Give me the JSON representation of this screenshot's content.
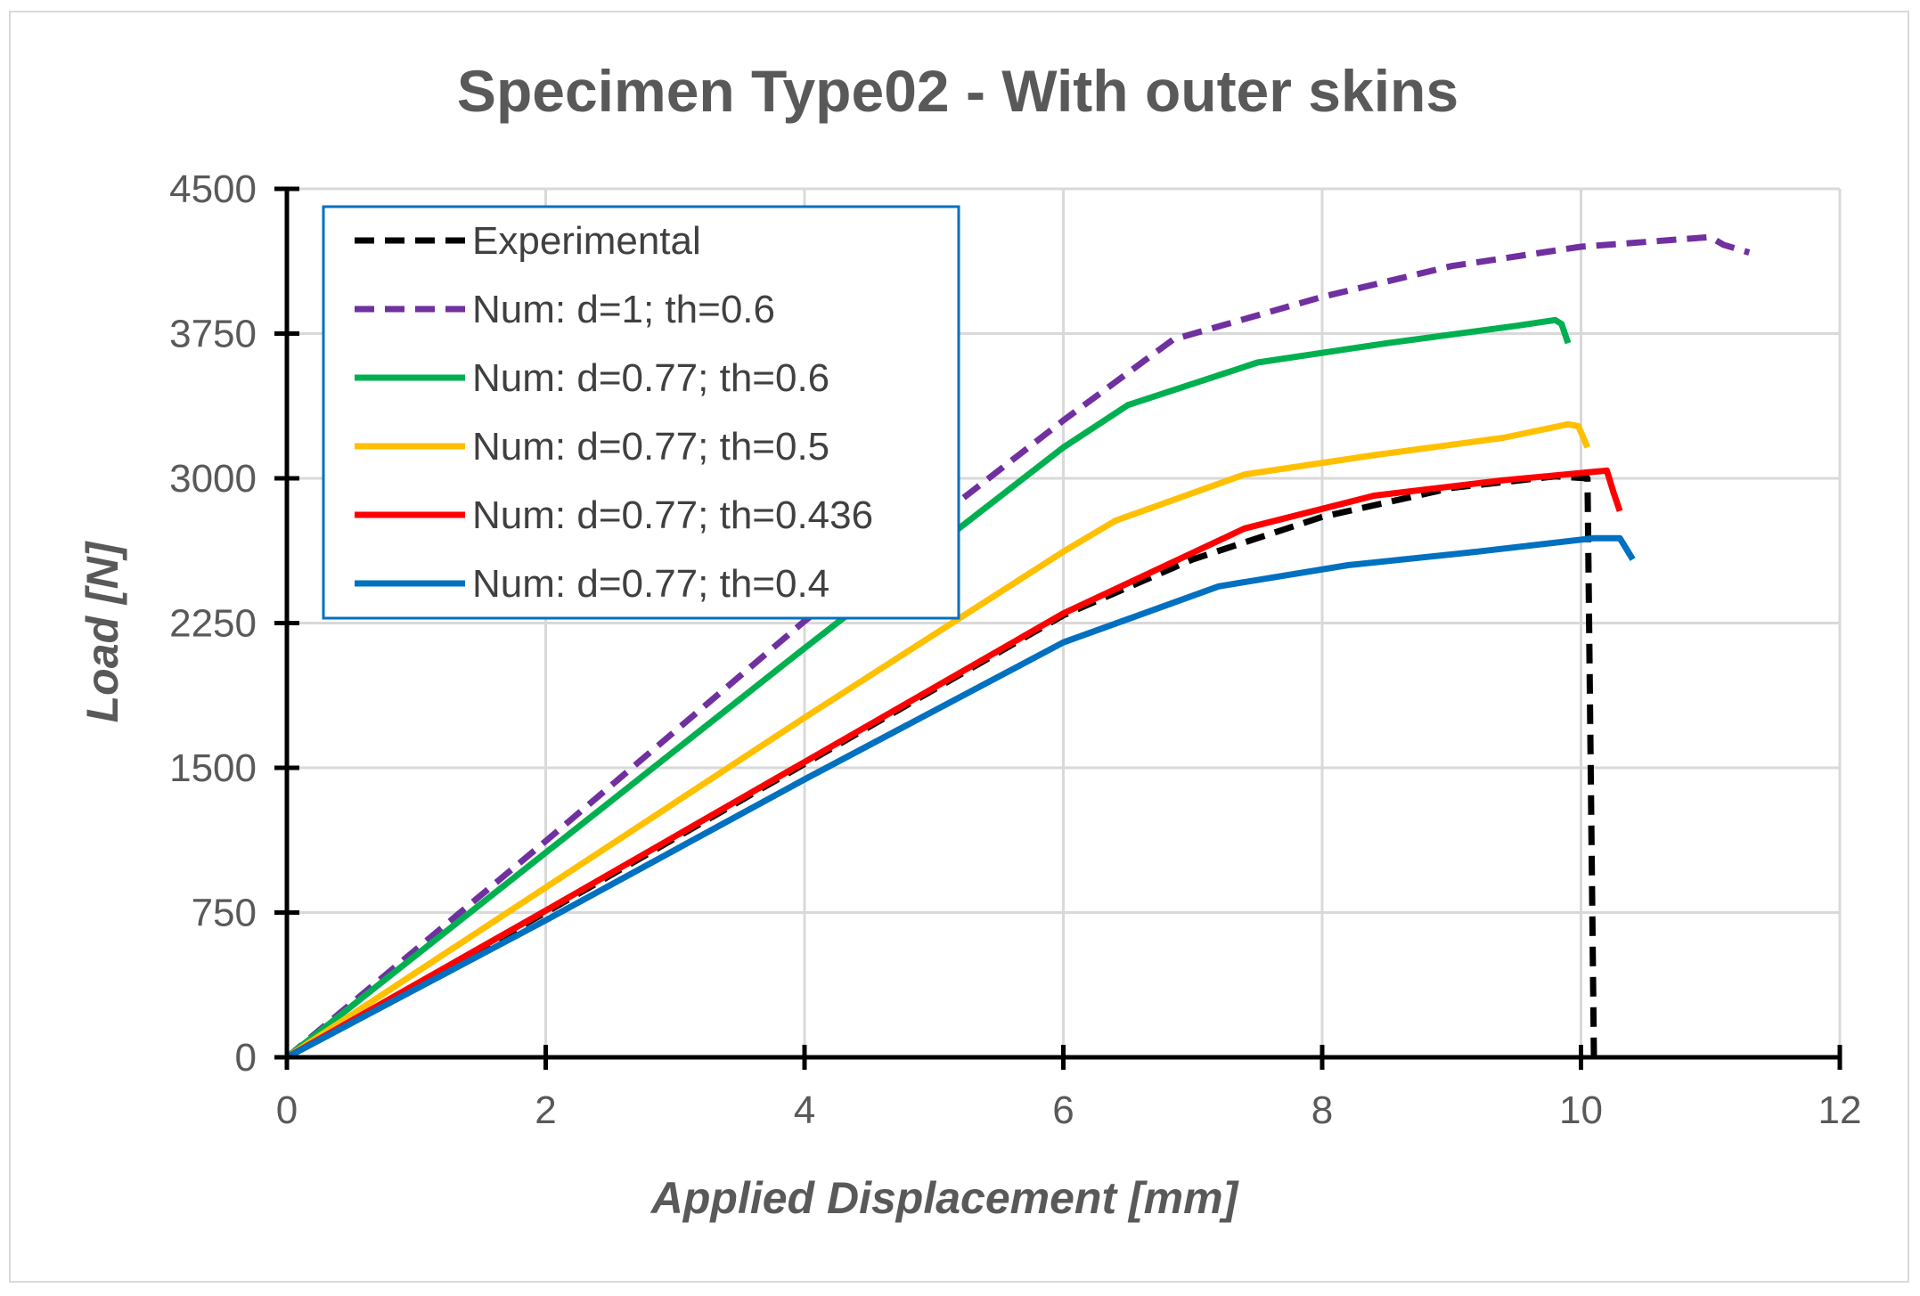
{
  "chart_data": {
    "type": "line",
    "title": "Specimen Type02 - With outer skins",
    "xlabel": "Applied Displacement [mm]",
    "ylabel": "Load [N]",
    "xlim": [
      0,
      12
    ],
    "ylim": [
      0,
      4500
    ],
    "xticks": [
      0,
      2,
      4,
      6,
      8,
      10,
      12
    ],
    "yticks": [
      0,
      750,
      1500,
      2250,
      3000,
      3750,
      4500
    ],
    "xtick_labels": [
      "0",
      "2",
      "4",
      "6",
      "8",
      "10",
      "12"
    ],
    "ytick_labels": [
      "0",
      "750",
      "1500",
      "2250",
      "3000",
      "3750",
      "4500"
    ],
    "grid": true,
    "legend_position": "top-left",
    "series": [
      {
        "name": "Experimental",
        "color": "#000000",
        "dash": "dashed",
        "points": [
          [
            0,
            0
          ],
          [
            2,
            750
          ],
          [
            4,
            1520
          ],
          [
            6,
            2290
          ],
          [
            7,
            2580
          ],
          [
            8,
            2800
          ],
          [
            9,
            2950
          ],
          [
            9.8,
            3010
          ],
          [
            10.05,
            3000
          ],
          [
            10.1,
            0
          ]
        ]
      },
      {
        "name": "Num: d=1; th=0.6",
        "color": "#7030a0",
        "dash": "dashed",
        "points": [
          [
            0,
            0
          ],
          [
            2,
            1120
          ],
          [
            4,
            2260
          ],
          [
            6,
            3300
          ],
          [
            6.85,
            3720
          ],
          [
            8,
            3940
          ],
          [
            9,
            4100
          ],
          [
            10,
            4200
          ],
          [
            11,
            4250
          ],
          [
            11.1,
            4210
          ],
          [
            11.3,
            4170
          ]
        ]
      },
      {
        "name": "Num: d=0.77; th=0.6",
        "color": "#00b050",
        "dash": "solid",
        "points": [
          [
            0,
            0
          ],
          [
            2,
            1060
          ],
          [
            4,
            2120
          ],
          [
            6,
            3160
          ],
          [
            6.5,
            3380
          ],
          [
            7.5,
            3600
          ],
          [
            8.5,
            3700
          ],
          [
            9.5,
            3790
          ],
          [
            9.8,
            3820
          ],
          [
            9.85,
            3800
          ],
          [
            9.9,
            3700
          ]
        ]
      },
      {
        "name": "Num: d=0.77; th=0.5",
        "color": "#ffc000",
        "dash": "solid",
        "points": [
          [
            0,
            0
          ],
          [
            2,
            880
          ],
          [
            4,
            1760
          ],
          [
            6,
            2620
          ],
          [
            6.4,
            2780
          ],
          [
            7.4,
            3020
          ],
          [
            8.4,
            3120
          ],
          [
            9.4,
            3210
          ],
          [
            9.9,
            3280
          ],
          [
            9.98,
            3270
          ],
          [
            10.05,
            3160
          ]
        ]
      },
      {
        "name": "Num: d=0.77; th=0.436",
        "color": "#ff0000",
        "dash": "solid",
        "points": [
          [
            0,
            0
          ],
          [
            2,
            760
          ],
          [
            4,
            1530
          ],
          [
            6,
            2300
          ],
          [
            7.4,
            2740
          ],
          [
            8.4,
            2910
          ],
          [
            9.4,
            2990
          ],
          [
            10.2,
            3040
          ],
          [
            10.25,
            2930
          ],
          [
            10.3,
            2830
          ]
        ]
      },
      {
        "name": "Num: d=0.77; th=0.4",
        "color": "#0070c0",
        "dash": "solid",
        "points": [
          [
            0,
            0
          ],
          [
            2,
            710
          ],
          [
            4,
            1440
          ],
          [
            6,
            2150
          ],
          [
            7.2,
            2440
          ],
          [
            8.2,
            2550
          ],
          [
            9.2,
            2620
          ],
          [
            10.1,
            2690
          ],
          [
            10.3,
            2690
          ],
          [
            10.4,
            2580
          ]
        ]
      }
    ]
  }
}
